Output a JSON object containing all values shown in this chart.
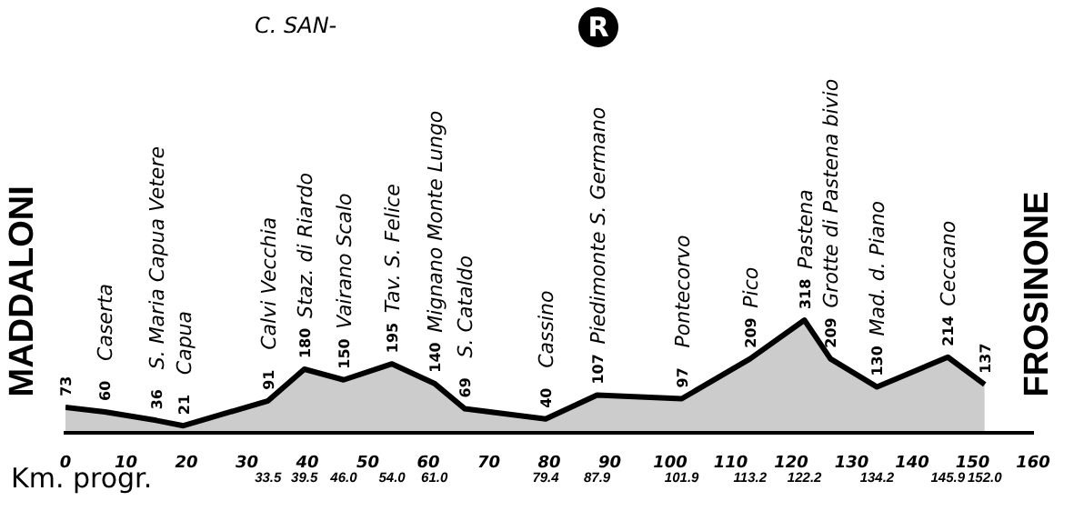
{
  "chart_data": {
    "type": "area",
    "xlabel": "Km. progr.",
    "x": [
      0,
      6.5,
      15,
      19.5,
      33.5,
      39.5,
      46.0,
      54.0,
      61.0,
      66,
      79.4,
      87.9,
      101.9,
      113.2,
      122.2,
      126.5,
      134.2,
      145.9,
      152.0
    ],
    "series": [
      {
        "color": "#000000",
        "values": [
          73,
          60,
          36,
          21,
          91,
          180,
          150,
          195,
          140,
          69,
          40,
          107,
          97,
          209,
          318,
          209,
          130,
          214,
          137
        ]
      }
    ],
    "data_labels": true,
    "marker": "none",
    "grid": false,
    "legend": false,
    "xlim": [
      0,
      160
    ],
    "xticks": [
      0,
      10,
      20,
      30,
      40,
      50,
      60,
      70,
      80,
      90,
      100,
      110,
      120,
      130,
      140,
      150,
      160
    ],
    "annotations": [
      {
        "text": "MADDALONI",
        "x": 0,
        "y": 73
      },
      {
        "text": "Caserta",
        "x": 6.5,
        "y": 60
      },
      {
        "text": "S. Maria Capua Vetere",
        "x": 15,
        "y": 36
      },
      {
        "text": "Capua",
        "x": 19.5,
        "y": 21
      },
      {
        "text": "Calvi Vecchia",
        "x": 33.5,
        "y": 91
      },
      {
        "text": "Staz. di Riardo",
        "x": 39.5,
        "y": 180
      },
      {
        "text": "Vairano Scalo",
        "x": 46.0,
        "y": 150
      },
      {
        "text": "Tav. S. Felice",
        "x": 54.0,
        "y": 195
      },
      {
        "text": "Mignano Monte Lungo",
        "x": 61.0,
        "y": 140
      },
      {
        "text": "S. Cataldo",
        "x": 66,
        "y": 69
      },
      {
        "text": "Cassino",
        "x": 79.4,
        "y": 40
      },
      {
        "text": "Piedimonte S. Germano",
        "x": 87.9,
        "y": 107
      },
      {
        "text": "Pontecorvo",
        "x": 101.9,
        "y": 97
      },
      {
        "text": "Pico",
        "x": 113.2,
        "y": 209
      },
      {
        "text": "Pastena",
        "x": 122.2,
        "y": 318
      },
      {
        "text": "Grotte di Pastena bivio",
        "x": 126.5,
        "y": 209
      },
      {
        "text": "Mad. d. Piano",
        "x": 134.2,
        "y": 130
      },
      {
        "text": "Ceccano",
        "x": 145.9,
        "y": 214
      },
      {
        "text": "FROSINONE",
        "x": 152.0,
        "y": 137
      },
      {
        "text": "33.5",
        "x": 33.5,
        "y": 0
      },
      {
        "text": "39.5",
        "x": 39.5,
        "y": 0
      },
      {
        "text": "46.0",
        "x": 46.0,
        "y": 0
      },
      {
        "text": "54.0",
        "x": 54.0,
        "y": 0
      },
      {
        "text": "61.0",
        "x": 61.0,
        "y": 0
      },
      {
        "text": "79.4",
        "x": 79.4,
        "y": 0
      },
      {
        "text": "87.9",
        "x": 87.9,
        "y": 0
      },
      {
        "text": "101.9",
        "x": 101.9,
        "y": 0
      },
      {
        "text": "113.2",
        "x": 113.2,
        "y": 0
      },
      {
        "text": "122.2",
        "x": 122.2,
        "y": 0
      },
      {
        "text": "134.2",
        "x": 134.2,
        "y": 0
      },
      {
        "text": "145.9",
        "x": 145.9,
        "y": 0
      },
      {
        "text": "152.0",
        "x": 152.0,
        "y": 0
      },
      "C. SAN-",
      "R"
    ]
  }
}
